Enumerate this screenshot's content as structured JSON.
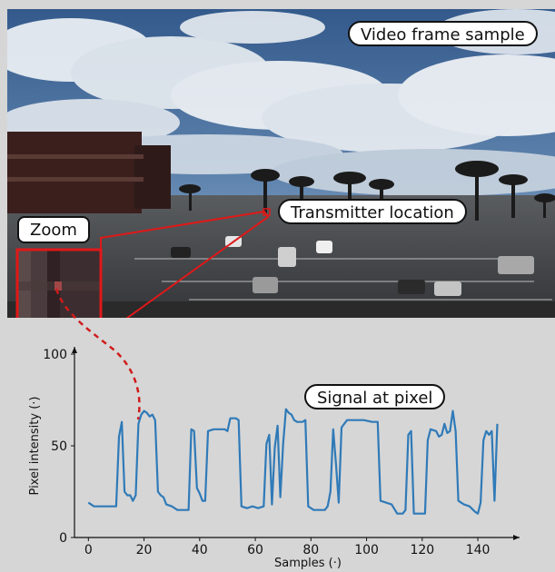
{
  "photo_labels": {
    "title": "Video frame sample",
    "transmitter": "Transmitter location",
    "zoom": "Zoom"
  },
  "chart_labels": {
    "signal": "Signal at pixel"
  },
  "colors": {
    "line": "#2f7ab8",
    "highlight": "#d01b1b",
    "background": "#d6d6d6"
  },
  "chart_data": {
    "type": "line",
    "xlabel": "Samples (·)",
    "ylabel": "Pixel intensity (·)",
    "xlim": [
      -5,
      155
    ],
    "ylim": [
      0,
      100
    ],
    "xticks": [
      0,
      20,
      40,
      60,
      80,
      100,
      120,
      140
    ],
    "yticks": [
      0,
      50,
      100
    ],
    "series": [
      {
        "values": [
          [
            0,
            19
          ],
          [
            2,
            17
          ],
          [
            4,
            17
          ],
          [
            6,
            17
          ],
          [
            8,
            17
          ],
          [
            10,
            17
          ],
          [
            11,
            55
          ],
          [
            12,
            63
          ],
          [
            13,
            25
          ],
          [
            14,
            23
          ],
          [
            15,
            23
          ],
          [
            16,
            20
          ],
          [
            17,
            23
          ],
          [
            18,
            62
          ],
          [
            19,
            67
          ],
          [
            20,
            69
          ],
          [
            21,
            68
          ],
          [
            22,
            66
          ],
          [
            23,
            67
          ],
          [
            24,
            64
          ],
          [
            25,
            25
          ],
          [
            26,
            23
          ],
          [
            27,
            22
          ],
          [
            28,
            18
          ],
          [
            30,
            17
          ],
          [
            32,
            15
          ],
          [
            34,
            15
          ],
          [
            36,
            15
          ],
          [
            37,
            59
          ],
          [
            38,
            58
          ],
          [
            39,
            27
          ],
          [
            40,
            24
          ],
          [
            41,
            20
          ],
          [
            42,
            20
          ],
          [
            43,
            58
          ],
          [
            45,
            59
          ],
          [
            47,
            59
          ],
          [
            49,
            59
          ],
          [
            50,
            58
          ],
          [
            51,
            65
          ],
          [
            53,
            65
          ],
          [
            54,
            64
          ],
          [
            55,
            17
          ],
          [
            57,
            16
          ],
          [
            59,
            17
          ],
          [
            61,
            16
          ],
          [
            63,
            17
          ],
          [
            64,
            51
          ],
          [
            65,
            56
          ],
          [
            66,
            18
          ],
          [
            67,
            49
          ],
          [
            68,
            61
          ],
          [
            69,
            22
          ],
          [
            70,
            51
          ],
          [
            71,
            70
          ],
          [
            72,
            68
          ],
          [
            73,
            67
          ],
          [
            74,
            64
          ],
          [
            75,
            63
          ],
          [
            77,
            63
          ],
          [
            78,
            64
          ],
          [
            79,
            17
          ],
          [
            81,
            15
          ],
          [
            83,
            15
          ],
          [
            85,
            15
          ],
          [
            86,
            17
          ],
          [
            87,
            25
          ],
          [
            88,
            59
          ],
          [
            89,
            40
          ],
          [
            90,
            19
          ],
          [
            91,
            60
          ],
          [
            93,
            64
          ],
          [
            96,
            64
          ],
          [
            99,
            64
          ],
          [
            102,
            63
          ],
          [
            104,
            63
          ],
          [
            105,
            20
          ],
          [
            107,
            19
          ],
          [
            109,
            18
          ],
          [
            111,
            13
          ],
          [
            113,
            13
          ],
          [
            114,
            15
          ],
          [
            115,
            56
          ],
          [
            116,
            58
          ],
          [
            117,
            13
          ],
          [
            119,
            13
          ],
          [
            121,
            13
          ],
          [
            122,
            53
          ],
          [
            123,
            59
          ],
          [
            125,
            58
          ],
          [
            126,
            55
          ],
          [
            127,
            56
          ],
          [
            128,
            62
          ],
          [
            129,
            57
          ],
          [
            130,
            58
          ],
          [
            131,
            69
          ],
          [
            132,
            58
          ],
          [
            133,
            20
          ],
          [
            135,
            18
          ],
          [
            137,
            17
          ],
          [
            139,
            14
          ],
          [
            140,
            13
          ],
          [
            141,
            19
          ],
          [
            142,
            53
          ],
          [
            143,
            58
          ],
          [
            144,
            56
          ],
          [
            145,
            58
          ],
          [
            146,
            20
          ],
          [
            147,
            62
          ]
        ]
      }
    ]
  }
}
